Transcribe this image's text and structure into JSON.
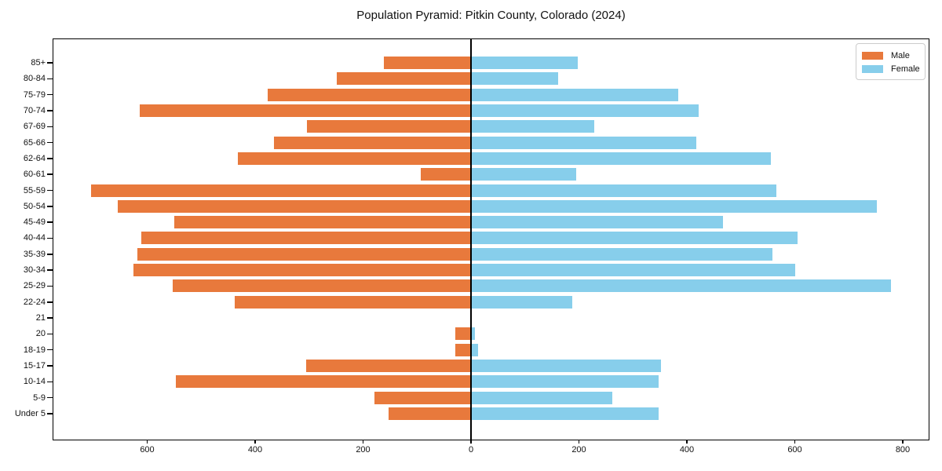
{
  "title": "Population Pyramid: Pitkin County, Colorado (2024)",
  "colors": {
    "male": "#E8793C",
    "female": "#87CEEB",
    "axis": "#000000",
    "legend_border": "#cccccc",
    "text": "#111111"
  },
  "legend": {
    "male_label": "Male",
    "female_label": "Female",
    "position": "upper right"
  },
  "chart_data": {
    "type": "bar",
    "subtype": "population-pyramid",
    "title": "Population Pyramid: Pitkin County, Colorado (2024)",
    "categories": [
      "85+",
      "80-84",
      "75-79",
      "70-74",
      "67-69",
      "65-66",
      "62-64",
      "60-61",
      "55-59",
      "50-54",
      "45-49",
      "40-44",
      "35-39",
      "30-34",
      "25-29",
      "22-24",
      "21",
      "20",
      "18-19",
      "15-17",
      "10-14",
      "5-9",
      "Under 5"
    ],
    "series": [
      {
        "name": "Male",
        "side": "left",
        "color": "#E8793C",
        "values": [
          160,
          247,
          375,
          612,
          303,
          364,
          431,
          92,
          703,
          653,
          549,
          609,
          617,
          624,
          552,
          437,
          0,
          28,
          28,
          304,
          545,
          177,
          151
        ]
      },
      {
        "name": "Female",
        "side": "right",
        "color": "#87CEEB",
        "values": [
          197,
          160,
          383,
          420,
          227,
          416,
          554,
          193,
          565,
          750,
          466,
          603,
          557,
          599,
          777,
          186,
          0,
          6,
          11,
          350,
          346,
          260,
          346
        ]
      }
    ],
    "x_axis": {
      "ticks": [
        -600,
        -400,
        -200,
        0,
        200,
        400,
        600,
        800
      ],
      "tick_labels": [
        "600",
        "400",
        "200",
        "0",
        "200",
        "400",
        "600",
        "800"
      ],
      "xlim": [
        -775,
        850
      ]
    },
    "y_axis": {
      "label": ""
    },
    "grid": false,
    "legend_position": "upper right"
  }
}
